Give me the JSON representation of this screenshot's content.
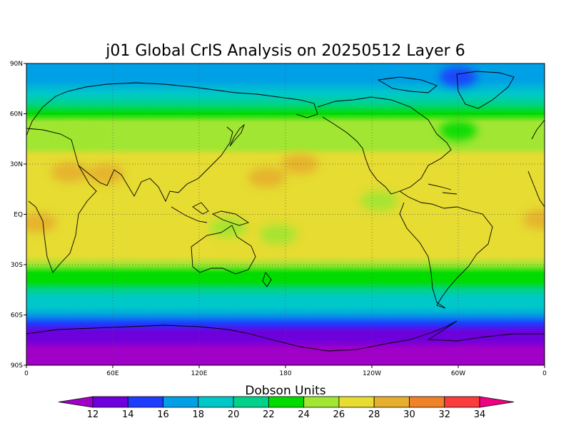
{
  "chart_data": {
    "type": "heatmap",
    "title": "j01 Global CrIS Analysis on 20250512 Layer 6",
    "projection": "equirectangular",
    "x_ticks": [
      "0",
      "60E",
      "120E",
      "180",
      "120W",
      "60W",
      "0"
    ],
    "x_tick_lons": [
      0,
      60,
      120,
      180,
      240,
      300,
      360
    ],
    "y_ticks": [
      "90N",
      "60N",
      "30N",
      "EQ",
      "30S",
      "60S",
      "90S"
    ],
    "y_tick_lats": [
      90,
      60,
      30,
      0,
      -30,
      -60,
      -90
    ],
    "xlim": [
      0,
      360
    ],
    "ylim": [
      -90,
      90
    ],
    "grid": "dotted",
    "colorbar": {
      "label": "Dobson Units",
      "levels": [
        12,
        14,
        16,
        18,
        20,
        22,
        24,
        26,
        28,
        30,
        32,
        34
      ],
      "level_labels": [
        "12",
        "14",
        "16",
        "18",
        "20",
        "22",
        "24",
        "26",
        "28",
        "30",
        "32",
        "34"
      ],
      "colors": [
        "#a000c8",
        "#6e00dc",
        "#1e3cff",
        "#00a0e6",
        "#00c8c8",
        "#00d28c",
        "#00dc00",
        "#a0e632",
        "#e6dc32",
        "#e6af2d",
        "#f08228",
        "#fa3c3c",
        "#f00082"
      ]
    },
    "zonal_profile": {
      "lat": [
        90,
        80,
        72,
        66,
        60,
        55,
        50,
        45,
        40,
        35,
        30,
        25,
        20,
        15,
        10,
        5,
        0,
        -5,
        -10,
        -15,
        -20,
        -25,
        -30,
        -35,
        -40,
        -45,
        -50,
        -55,
        -60,
        -65,
        -70,
        -75,
        -80,
        -90
      ],
      "value": [
        16.5,
        17.0,
        18.8,
        21.0,
        23.0,
        24.2,
        24.6,
        25.2,
        25.8,
        26.6,
        27.0,
        27.2,
        27.0,
        26.6,
        26.2,
        26.0,
        26.0,
        26.0,
        26.3,
        26.5,
        26.6,
        26.1,
        25.0,
        23.5,
        22.6,
        21.2,
        19.7,
        18.0,
        16.5,
        14.8,
        13.8,
        12.0,
        11.6,
        11.5
      ]
    },
    "anomalies": [
      {
        "lon": 30,
        "lat": 25,
        "value": 28.6
      },
      {
        "lon": 55,
        "lat": 24,
        "value": 28.3
      },
      {
        "lon": 8,
        "lat": -5,
        "value": 28.4
      },
      {
        "lon": 358,
        "lat": -3,
        "value": 28.4
      },
      {
        "lon": 167,
        "lat": 22,
        "value": 28.3
      },
      {
        "lon": 190,
        "lat": 30,
        "value": 28.3
      },
      {
        "lon": 140,
        "lat": -8,
        "value": 24.5
      },
      {
        "lon": 175,
        "lat": -12,
        "value": 24.5
      },
      {
        "lon": 245,
        "lat": 8,
        "value": 24.5
      },
      {
        "lon": 35,
        "lat": 48,
        "value": 24.8
      },
      {
        "lon": 300,
        "lat": 50,
        "value": 23.5
      },
      {
        "lon": 300,
        "lat": 82,
        "value": 14.5
      },
      {
        "lon": 150,
        "lat": -20,
        "value": 26.2
      }
    ]
  }
}
